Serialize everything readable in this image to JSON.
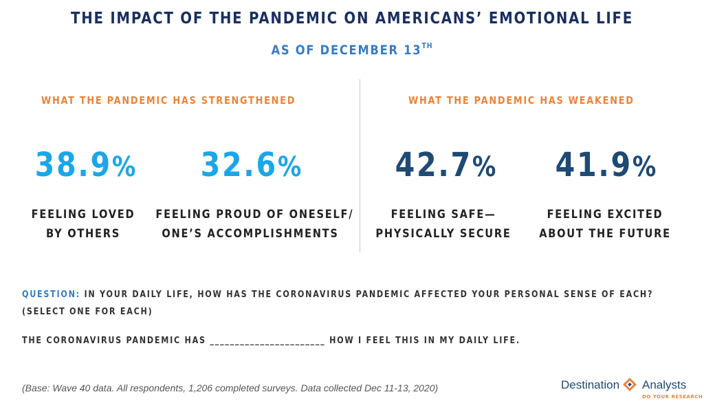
{
  "header": {
    "title": "THE IMPACT OF THE PANDEMIC ON AMERICANS’ EMOTIONAL LIFE",
    "subtitle": "AS OF DECEMBER 13",
    "subtitle_sup": "TH"
  },
  "strengthened": {
    "heading": "WHAT THE PANDEMIC HAS STRENGTHENED",
    "items": [
      {
        "value": "38.9",
        "unit": "%",
        "label_line1": "FEELING LOVED",
        "label_line2": "BY OTHERS"
      },
      {
        "value": "32.6",
        "unit": "%",
        "label_line1": "FEELING PROUD OF ONESELF/",
        "label_line2": "ONE’S ACCOMPLISHMENTS"
      }
    ]
  },
  "weakened": {
    "heading": "WHAT THE PANDEMIC HAS WEAKENED",
    "items": [
      {
        "value": "42.7",
        "unit": "%",
        "label_line1": "FEELING SAFE—",
        "label_line2": "PHYSICALLY SECURE"
      },
      {
        "value": "41.9",
        "unit": "%",
        "label_line1": "FEELING EXCITED",
        "label_line2": "ABOUT THE FUTURE"
      }
    ]
  },
  "question": {
    "label": "QUESTION:",
    "text": " IN YOUR DAILY LIFE, HOW HAS THE CORONAVIRUS PANDEMIC AFFECTED YOUR PERSONAL SENSE OF EACH?  (SELECT ONE FOR EACH)",
    "fill_in": "THE CORONAVIRUS PANDEMIC HAS _______________________ HOW I FEEL THIS IN MY DAILY LIFE."
  },
  "footnote": "(Base: Wave 40 data. All respondents, 1,206 completed surveys. Data collected Dec 11-13, 2020)",
  "logo": {
    "name_part1": "Destination",
    "name_part2": "Analysts",
    "tagline": "DO YOUR RESEARCH"
  },
  "colors": {
    "title": "#1a2f5e",
    "subtitle": "#3a7bbf",
    "heading": "#e8843b",
    "strengthened_value": "#1ba6e8",
    "weakened_value": "#1e4a74"
  }
}
